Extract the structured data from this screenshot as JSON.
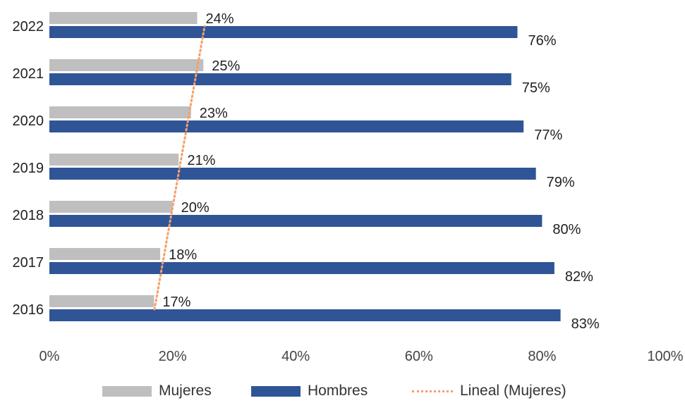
{
  "chart_data": {
    "type": "bar",
    "orientation": "horizontal",
    "categories": [
      "2022",
      "2021",
      "2020",
      "2019",
      "2018",
      "2017",
      "2016"
    ],
    "series": [
      {
        "name": "Mujeres",
        "values": [
          24,
          25,
          23,
          21,
          20,
          18,
          17
        ],
        "labels": [
          "24%",
          "25%",
          "23%",
          "21%",
          "20%",
          "18%",
          "17%"
        ],
        "color": "#bfbfbf"
      },
      {
        "name": "Hombres",
        "values": [
          76,
          75,
          77,
          79,
          80,
          82,
          83
        ],
        "labels": [
          "76%",
          "75%",
          "77%",
          "79%",
          "80%",
          "82%",
          "83%"
        ],
        "color": "#2f5597"
      }
    ],
    "trendline": {
      "name": "Lineal (Mujeres)",
      "series": "Mujeres",
      "type": "linear",
      "color": "#f4a06b",
      "style": "dotted"
    },
    "xlim": [
      0,
      100
    ],
    "xticks": [
      "0%",
      "20%",
      "40%",
      "60%",
      "80%",
      "100%"
    ],
    "grid": false,
    "legend": "bottom"
  }
}
